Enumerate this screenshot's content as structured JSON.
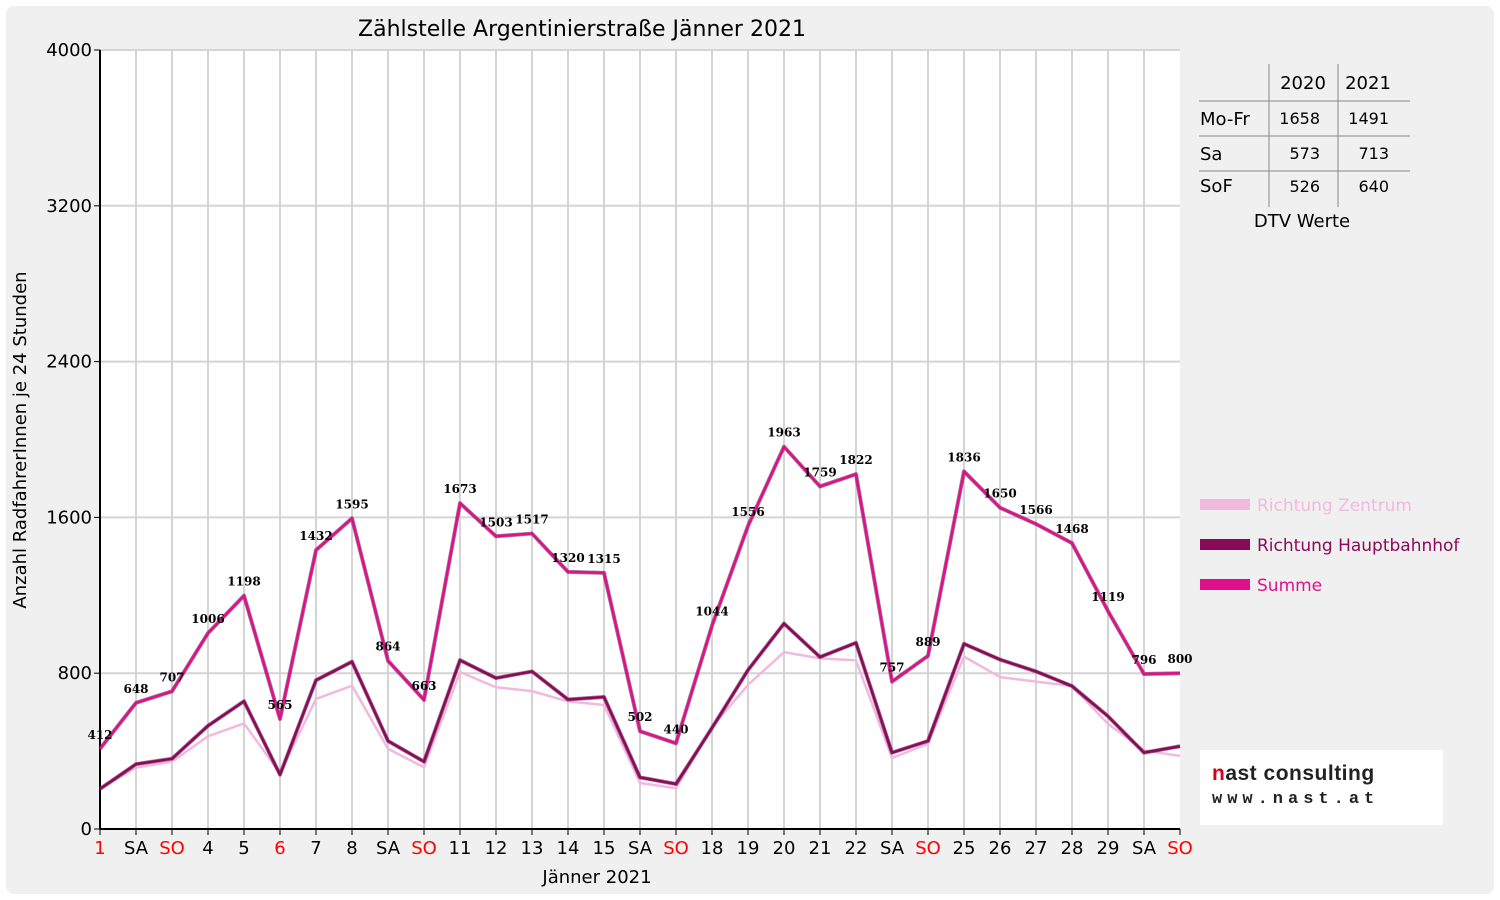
{
  "chart_data": {
    "type": "line",
    "title": "Zählstelle Argentinierstraße Jänner 2021",
    "xlabel": "Jänner 2021",
    "ylabel": "Anzahl RadfahrerInnen je 24 Stunden",
    "ylim": [
      0,
      4000
    ],
    "yticks": [
      0,
      800,
      1600,
      2400,
      3200,
      4000
    ],
    "grid": true,
    "legend_position": "right",
    "categories": [
      "1",
      "SA",
      "SO",
      "4",
      "5",
      "6",
      "7",
      "8",
      "SA",
      "SO",
      "11",
      "12",
      "13",
      "14",
      "15",
      "SA",
      "SO",
      "18",
      "19",
      "20",
      "21",
      "22",
      "SA",
      "SO",
      "25",
      "26",
      "27",
      "28",
      "29",
      "SA",
      "SO"
    ],
    "red_categories": [
      0,
      2,
      5,
      9,
      16,
      23,
      30
    ],
    "series": [
      {
        "name": "Richtung Zentrum",
        "color": "#f2b9df",
        "values": [
          206,
          315,
          346,
          476,
          542,
          286,
          668,
          736,
          412,
          317,
          806,
          728,
          708,
          655,
          637,
          237,
          209,
          525,
          740,
          908,
          876,
          866,
          365,
          437,
          885,
          780,
          757,
          734,
          540,
          404,
          375
        ]
      },
      {
        "name": "Richtung Hauptbahnhof",
        "color": "#8a0a5a",
        "values": [
          206,
          333,
          361,
          530,
          656,
          279,
          764,
          859,
          452,
          346,
          867,
          775,
          809,
          665,
          678,
          265,
          231,
          519,
          816,
          1055,
          883,
          956,
          392,
          452,
          951,
          870,
          809,
          734,
          579,
          392,
          425
        ]
      },
      {
        "name": "Summe",
        "color": "#e0108c",
        "values": [
          412,
          648,
          707,
          1006,
          1198,
          565,
          1432,
          1595,
          864,
          663,
          1673,
          1503,
          1517,
          1320,
          1315,
          502,
          440,
          1044,
          1556,
          1963,
          1759,
          1822,
          757,
          889,
          1836,
          1650,
          1566,
          1468,
          1119,
          796,
          800
        ]
      }
    ],
    "dtv_table": {
      "title": "DTV Werte",
      "columns": [
        "2020",
        "2021"
      ],
      "rows": [
        {
          "label": "Mo-Fr",
          "v2020": "1658",
          "v2021": "1491"
        },
        {
          "label": "Sa",
          "v2020": "573",
          "v2021": "713"
        },
        {
          "label": "SoF",
          "v2020": "526",
          "v2021": "640"
        }
      ]
    }
  },
  "logo": {
    "name_prefix": "n",
    "name_rest": "ast consulting",
    "url": "www.nast.at"
  }
}
